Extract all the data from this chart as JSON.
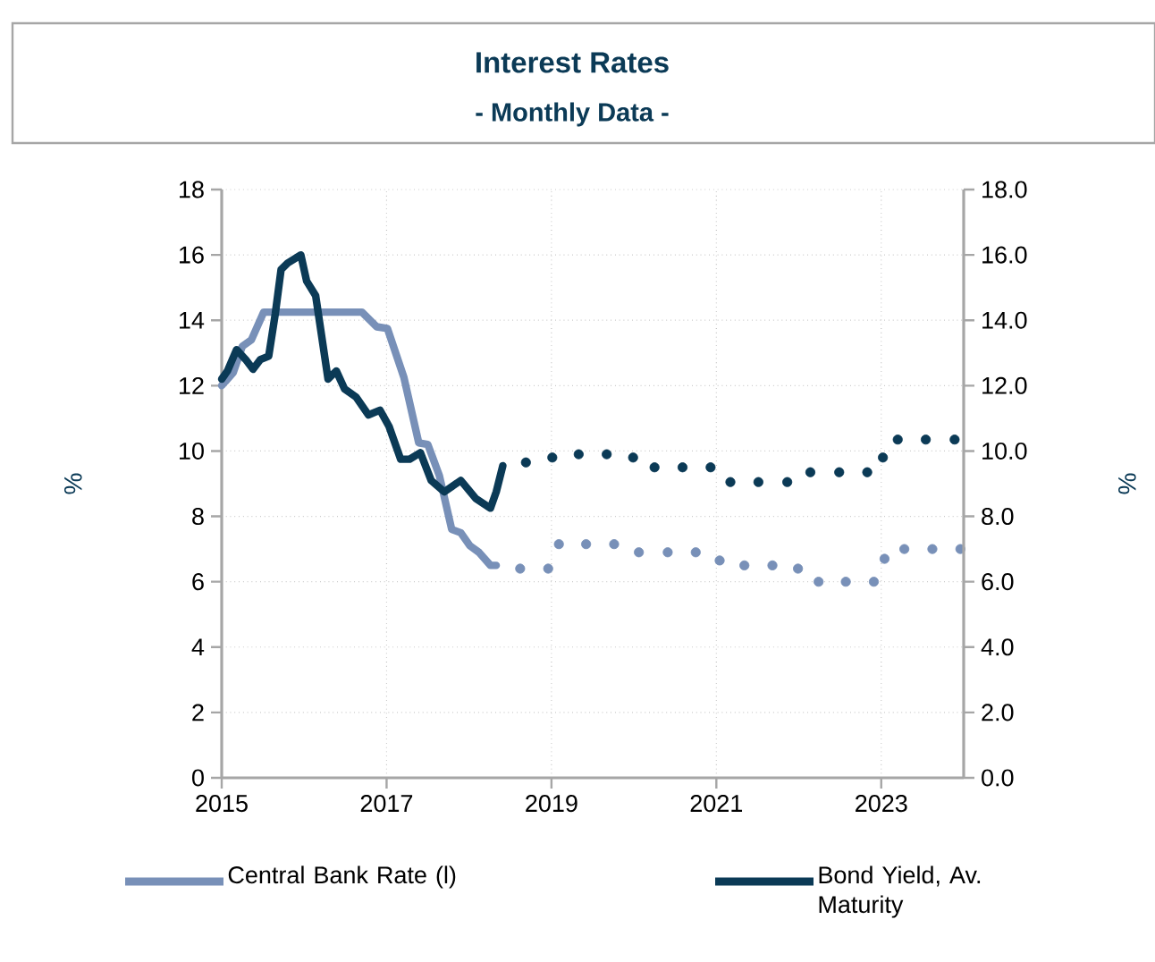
{
  "chart_data": {
    "type": "line",
    "title": "Interest Rates",
    "subtitle": "- Monthly Data -",
    "ylabel": "%",
    "y2label": "%",
    "xlim": [
      2015,
      2024
    ],
    "xticks": [
      2015,
      2017,
      2019,
      2021,
      2023
    ],
    "ylim": [
      0,
      18
    ],
    "yticks": [
      0,
      2,
      4,
      6,
      8,
      10,
      12,
      14,
      16,
      18
    ],
    "y2lim": [
      0,
      18
    ],
    "y2ticks": [
      {
        "value": 0,
        "label": "0.0"
      },
      {
        "value": 2,
        "label": "2.0"
      },
      {
        "value": 4,
        "label": "4.0"
      },
      {
        "value": 6,
        "label": "6.0"
      },
      {
        "value": 8,
        "label": "8.0"
      },
      {
        "value": 10,
        "label": "10.0"
      },
      {
        "value": 12,
        "label": "12.0"
      },
      {
        "value": 14,
        "label": "14.0"
      },
      {
        "value": 16,
        "label": "16.0"
      },
      {
        "value": 18,
        "label": "18.0"
      }
    ],
    "grid": true,
    "legend": "bottom",
    "series": [
      {
        "name": "Central Bank Rate (l)",
        "color": "#7890b8",
        "line_style": "solid",
        "x": [
          2015.0,
          2015.14,
          2015.25,
          2015.36,
          2015.51,
          2016.7,
          2016.88,
          2017.01,
          2017.21,
          2017.39,
          2017.5,
          2017.64,
          2017.79,
          2017.9,
          2018.01,
          2018.12,
          2018.26,
          2018.33
        ],
        "values": [
          12.0,
          12.4,
          13.2,
          13.4,
          14.25,
          14.25,
          13.8,
          13.75,
          12.25,
          10.25,
          10.2,
          9.25,
          7.6,
          7.5,
          7.1,
          6.9,
          6.5,
          6.5
        ]
      },
      {
        "name": "Bond Yield, Av. Maturity",
        "color": "#0b3a56",
        "line_style": "solid",
        "axis": "y2",
        "x": [
          2015.0,
          2015.07,
          2015.18,
          2015.29,
          2015.38,
          2015.47,
          2015.57,
          2015.65,
          2015.72,
          2015.8,
          2015.96,
          2016.03,
          2016.14,
          2016.29,
          2016.39,
          2016.49,
          2016.63,
          2016.78,
          2016.92,
          2017.03,
          2017.17,
          2017.28,
          2017.41,
          2017.54,
          2017.7,
          2017.9,
          2018.08,
          2018.26,
          2018.33,
          2018.41
        ],
        "values": [
          12.2,
          12.45,
          13.1,
          12.8,
          12.5,
          12.8,
          12.9,
          14.2,
          15.55,
          15.75,
          16.0,
          15.2,
          14.75,
          12.2,
          12.45,
          11.9,
          11.65,
          11.1,
          11.25,
          10.75,
          9.75,
          9.75,
          9.95,
          9.1,
          8.75,
          9.1,
          8.55,
          8.25,
          8.75,
          9.55
        ]
      },
      {
        "color": "#7890b8",
        "type": "scatter",
        "marker": "circle",
        "x": [
          2018.62,
          2018.96,
          2019.09,
          2019.42,
          2019.76,
          2020.06,
          2020.41,
          2020.75,
          2021.04,
          2021.34,
          2021.68,
          2021.99,
          2022.24,
          2022.57,
          2022.91,
          2023.04,
          2023.28,
          2023.62,
          2023.96
        ],
        "values": [
          6.4,
          6.4,
          7.15,
          7.15,
          7.15,
          6.9,
          6.9,
          6.9,
          6.65,
          6.5,
          6.5,
          6.4,
          6.0,
          6.0,
          6.0,
          6.7,
          7.0,
          7.0,
          7.0
        ]
      },
      {
        "color": "#0b3a56",
        "type": "scatter",
        "marker": "circle",
        "axis": "y2",
        "x": [
          2018.69,
          2019.01,
          2019.33,
          2019.67,
          2019.99,
          2020.25,
          2020.59,
          2020.93,
          2021.17,
          2021.51,
          2021.86,
          2022.14,
          2022.49,
          2022.83,
          2023.02,
          2023.2,
          2023.54,
          2023.89
        ],
        "values": [
          9.65,
          9.8,
          9.9,
          9.9,
          9.8,
          9.5,
          9.5,
          9.5,
          9.05,
          9.05,
          9.05,
          9.35,
          9.35,
          9.35,
          9.8,
          10.35,
          10.35,
          10.35
        ]
      }
    ]
  }
}
